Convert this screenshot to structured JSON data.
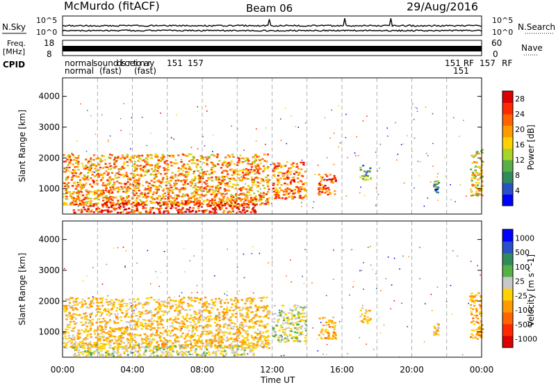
{
  "header": {
    "station": "McMurdo (fitACF)",
    "beam": "Beam 06",
    "date": "29/Aug/2016"
  },
  "noise_panel": {
    "left_label": "N.Sky",
    "right_label": "N.Search",
    "left_ticks": [
      "10^5",
      "10^0"
    ],
    "right_ticks": [
      "10^5",
      "10^0"
    ]
  },
  "freq_panel": {
    "left_label_1": "Freq.",
    "left_label_2": "[MHz]",
    "left_ticks": [
      "18",
      "8"
    ],
    "right_label": "Nave",
    "right_ticks": [
      "60",
      "0"
    ]
  },
  "cpid": {
    "label": "CPID",
    "segments": [
      "normal",
      "normal",
      "sound",
      "(fast)",
      "discretionary",
      "(fast)",
      "151",
      "157",
      "151 RF",
      "151",
      "157",
      "RF"
    ]
  },
  "colors": {
    "power": [
      "#0000ff",
      "#2850c8",
      "#2f8c5a",
      "#56b046",
      "#a8d428",
      "#ffd200",
      "#ff9a00",
      "#ff6400",
      "#ff2800",
      "#dc0000"
    ],
    "velocity": [
      "#dc0000",
      "#ff2800",
      "#ff6400",
      "#ff9a00",
      "#ffd200",
      "#c8c8c8",
      "#56b046",
      "#2f8c5a",
      "#2850c8",
      "#0000ff"
    ]
  },
  "chart_data": [
    {
      "type": "heatmap",
      "title": "",
      "xlabel": "Time UT",
      "ylabel": "Slant Range [km]",
      "xticks": [
        "00:00",
        "04:00",
        "08:00",
        "12:00",
        "16:00",
        "20:00",
        "00:00"
      ],
      "yticks": [
        "1000",
        "2000",
        "3000",
        "4000"
      ],
      "xlim_hours": [
        0,
        24
      ],
      "ylim_km": [
        180,
        4600
      ],
      "grid": "dashed vertical every 2h",
      "colorbar_label": "Power [dB]",
      "colorbar_ticks": [
        "4",
        "8",
        "12",
        "16",
        "20",
        "24",
        "28"
      ],
      "colorbar_range": [
        0,
        30
      ],
      "regions": [
        {
          "t0": 0.0,
          "t1": 11.8,
          "r0": 500,
          "r1": 2150,
          "value": 20
        },
        {
          "t0": 0.5,
          "t1": 11.0,
          "r0": 250,
          "r1": 600,
          "value": 26
        },
        {
          "t0": 12.0,
          "t1": 13.9,
          "r0": 700,
          "r1": 1900,
          "value": 22
        },
        {
          "t0": 14.6,
          "t1": 15.6,
          "r0": 800,
          "r1": 1500,
          "value": 24
        },
        {
          "t0": 17.0,
          "t1": 17.6,
          "r0": 1300,
          "r1": 1800,
          "value": 10
        },
        {
          "t0": 21.2,
          "t1": 21.5,
          "r0": 900,
          "r1": 1300,
          "value": 8
        },
        {
          "t0": 23.3,
          "t1": 24.0,
          "r0": 800,
          "r1": 2300,
          "value": 16
        }
      ]
    },
    {
      "type": "heatmap",
      "title": "",
      "xlabel": "Time UT",
      "ylabel": "Slant Range [km]",
      "xticks": [
        "00:00",
        "04:00",
        "08:00",
        "12:00",
        "16:00",
        "20:00",
        "00:00"
      ],
      "yticks": [
        "1000",
        "2000",
        "3000",
        "4000"
      ],
      "xlim_hours": [
        0,
        24
      ],
      "ylim_km": [
        180,
        4600
      ],
      "grid": "dashed vertical every 2h",
      "colorbar_label": "Velocity [m s^-1]",
      "colorbar_ticks": [
        "1000",
        "500",
        "100",
        "25",
        "-25",
        "-100",
        "-500",
        "-1000"
      ],
      "colorbar_range": [
        -1000,
        1000
      ],
      "regions": [
        {
          "t0": 0.0,
          "t1": 11.8,
          "r0": 500,
          "r1": 2150,
          "value": -150
        },
        {
          "t0": 0.5,
          "t1": 11.0,
          "r0": 250,
          "r1": 600,
          "value": 50
        },
        {
          "t0": 12.0,
          "t1": 13.9,
          "r0": 700,
          "r1": 1900,
          "value": 80
        },
        {
          "t0": 14.6,
          "t1": 15.6,
          "r0": 800,
          "r1": 1500,
          "value": -200
        },
        {
          "t0": 17.0,
          "t1": 17.6,
          "r0": 1300,
          "r1": 1800,
          "value": -150
        },
        {
          "t0": 21.2,
          "t1": 21.5,
          "r0": 900,
          "r1": 1300,
          "value": -100
        },
        {
          "t0": 23.3,
          "t1": 24.0,
          "r0": 800,
          "r1": 2300,
          "value": -250
        }
      ]
    }
  ]
}
